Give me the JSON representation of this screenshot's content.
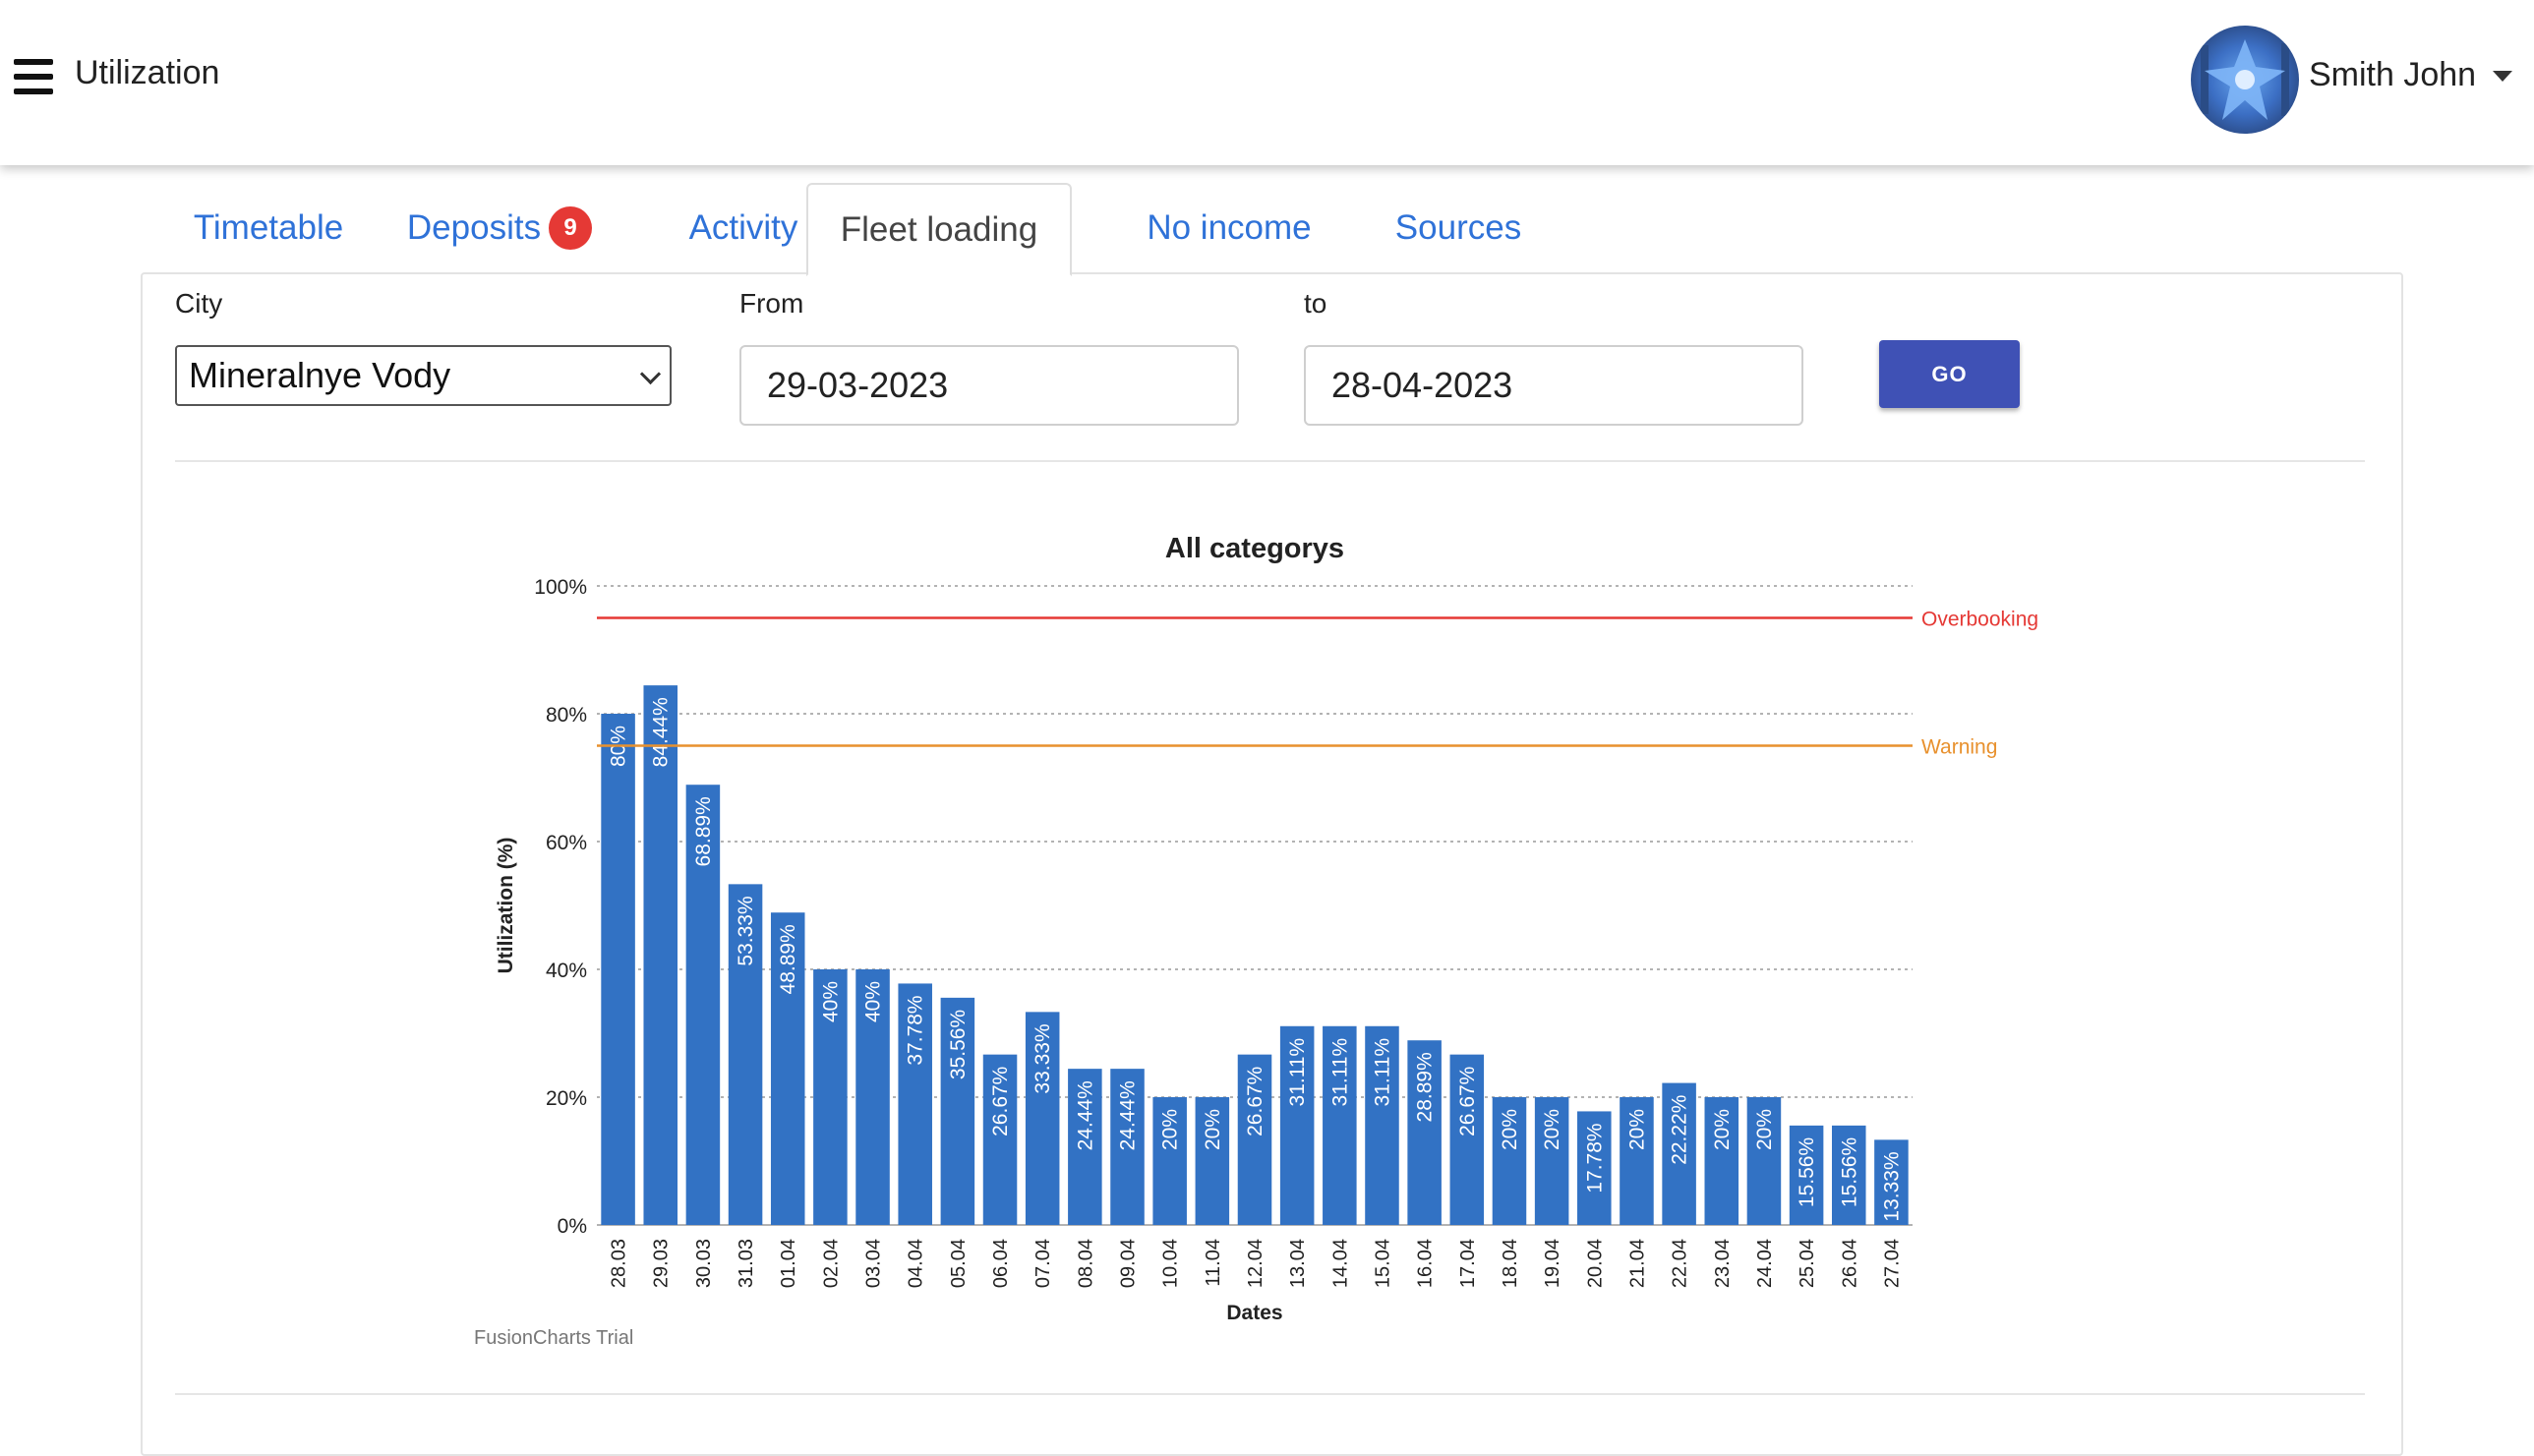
{
  "header": {
    "menu_icon": "hamburger-menu-icon",
    "title": "Utilization",
    "user_name": "Smith John"
  },
  "tabs": [
    {
      "label": "Timetable",
      "badge": null
    },
    {
      "label": "Deposits",
      "badge": "9"
    },
    {
      "label": "Activity",
      "badge": null
    },
    {
      "label": "Fleet loading",
      "badge": null,
      "active": true
    },
    {
      "label": "No income",
      "badge": null
    },
    {
      "label": "Sources",
      "badge": null
    }
  ],
  "filters": {
    "city_label": "City",
    "city_value": "Mineralnye Vody",
    "from_label": "From",
    "from_value": "29-03-2023",
    "to_label": "to",
    "to_value": "28-04-2023",
    "go_label": "GO"
  },
  "colors": {
    "accent": "#3f51b5",
    "tab_link": "#2f72d8",
    "bar": "#3272c4",
    "overbooking": "#e53935",
    "warning": "#e8912e",
    "badge": "#e53935"
  },
  "chart_data": {
    "type": "bar",
    "title": "All categorys",
    "xlabel": "Dates",
    "ylabel": "Utilization (%)",
    "ylim": [
      0,
      100
    ],
    "yticks": [
      "0%",
      "20%",
      "40%",
      "60%",
      "80%",
      "100%"
    ],
    "grid": true,
    "categories": [
      "28.03",
      "29.03",
      "30.03",
      "31.03",
      "01.04",
      "02.04",
      "03.04",
      "04.04",
      "05.04",
      "06.04",
      "07.04",
      "08.04",
      "09.04",
      "10.04",
      "11.04",
      "12.04",
      "13.04",
      "14.04",
      "15.04",
      "16.04",
      "17.04",
      "18.04",
      "19.04",
      "20.04",
      "21.04",
      "22.04",
      "23.04",
      "24.04",
      "25.04",
      "26.04",
      "27.04"
    ],
    "values": [
      80,
      84.44,
      68.89,
      53.33,
      48.89,
      40,
      40,
      37.78,
      35.56,
      26.67,
      33.33,
      24.44,
      24.44,
      20,
      20,
      26.67,
      31.11,
      31.11,
      31.11,
      28.89,
      26.67,
      20,
      20,
      17.78,
      20,
      22.22,
      20,
      20,
      15.56,
      15.56,
      13.33
    ],
    "data_labels": [
      "80%",
      "84.44%",
      "68.89%",
      "53.33%",
      "48.89%",
      "40%",
      "40%",
      "37.78%",
      "35.56%",
      "26.67%",
      "33.33%",
      "24.44%",
      "24.44%",
      "20%",
      "20%",
      "26.67%",
      "31.11%",
      "31.11%",
      "31.11%",
      "28.89%",
      "26.67%",
      "20%",
      "20%",
      "17.78%",
      "20%",
      "22.22%",
      "20%",
      "20%",
      "15.56%",
      "15.56%",
      "13.33%"
    ],
    "trendlines": [
      {
        "label": "Overbooking",
        "value": 95
      },
      {
        "label": "Warning",
        "value": 75
      }
    ],
    "watermark": "FusionCharts Trial"
  }
}
